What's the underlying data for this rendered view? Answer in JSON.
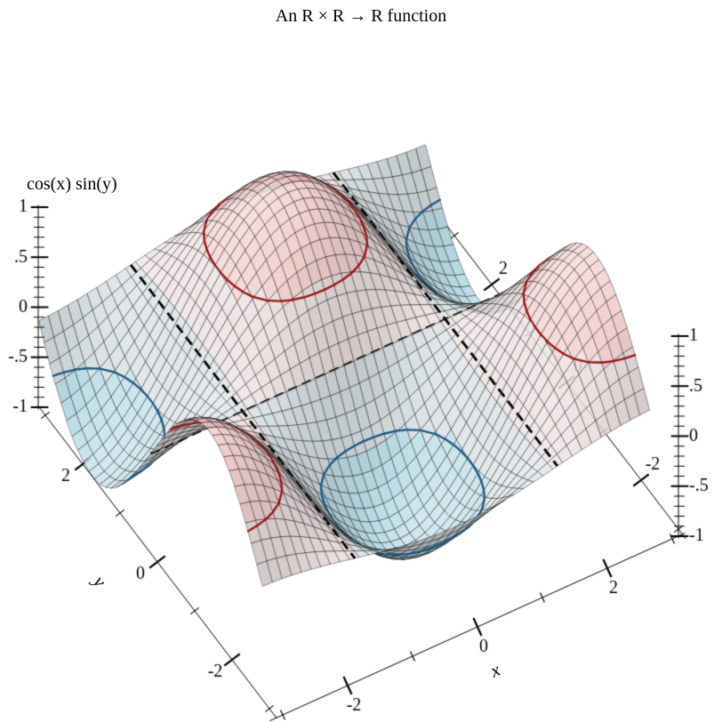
{
  "title": "An R × R → R function",
  "z_axis_label": "cos(x) sin(y)",
  "x_axis_label": "x",
  "y_axis_label": "y",
  "chart_data": {
    "type": "surface3d",
    "title": "An R × R → R function",
    "function": "cos(x) * sin(y)",
    "x_range": [
      -3,
      3
    ],
    "y_range": [
      -3,
      3
    ],
    "z_range": [
      -1,
      1
    ],
    "samples": 41,
    "x_ticks": {
      "major": [
        -2,
        0,
        2
      ],
      "major_labels": [
        "-2",
        "0",
        "2"
      ],
      "minor": [
        -3,
        -1,
        1,
        3
      ]
    },
    "y_ticks": {
      "major": [
        2,
        0,
        -2
      ],
      "major_labels": [
        "2",
        "0",
        "-2"
      ],
      "minor": [
        3,
        1,
        -1,
        -3
      ]
    },
    "z_ticks": {
      "major": [
        1,
        0.5,
        0,
        -0.5,
        -1
      ],
      "major_labels": [
        "1",
        ".5",
        "0",
        "-.5",
        "-1"
      ],
      "minor_step": 0.1
    },
    "contour_levels": [
      {
        "level": -0.5,
        "color": "#1d5a85",
        "style": "solid"
      },
      {
        "level": 0,
        "color": "#000000",
        "style": "long-dash"
      },
      {
        "level": 0.5,
        "color": "#9e1414",
        "style": "solid"
      }
    ],
    "interval_colors": [
      "#b2d9e4",
      "#d2dbdf",
      "#e8dbda",
      "#f0c8c6"
    ],
    "mesh_color": "rgba(0,0,0,0.52)",
    "surface_alpha": 0.84,
    "background": "#ffffff",
    "view": {
      "angle": 30,
      "altitude": 60
    }
  }
}
